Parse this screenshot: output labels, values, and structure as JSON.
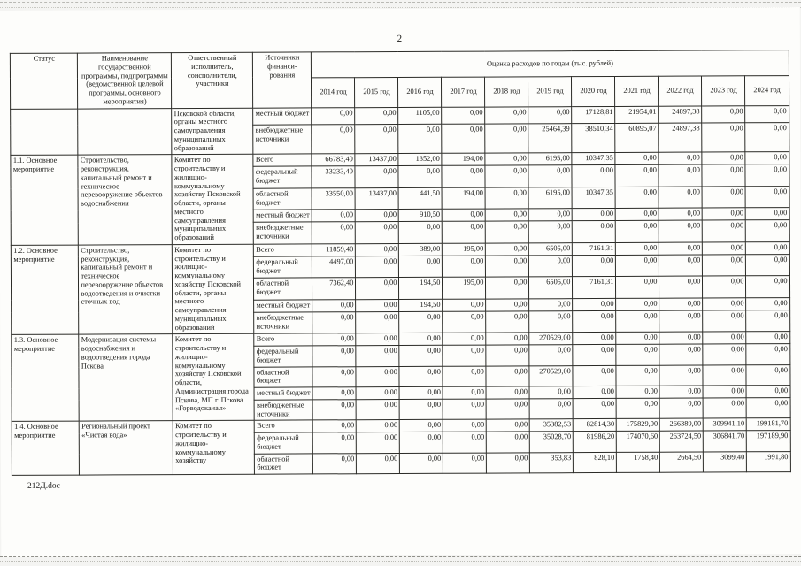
{
  "page": {
    "number": "2",
    "footer_note": "212Д.doc"
  },
  "table": {
    "header": {
      "status": "Статус",
      "program_name": "Наименование государственной программы, подпрограммы (ведомственной целевой программы, основного мероприятия)",
      "executor": "Ответственный исполнитель, соисполнители, участники",
      "funding_source": "Источники финанси-рования",
      "costs_title": "Оценка расходов по годам (тыс. рублей)",
      "years": [
        "2014 год",
        "2015 год",
        "2016 год",
        "2017 год",
        "2018 год",
        "2019 год",
        "2020 год",
        "2021 год",
        "2022 год",
        "2023 год",
        "2024 год"
      ]
    },
    "blocks": [
      {
        "status": "",
        "name": "",
        "executor": "Псковской области, органы местного самоуправления муниципальных образований",
        "sources": [
          {
            "label": "местный бюджет",
            "values": [
              "0,00",
              "0,00",
              "1105,00",
              "0,00",
              "0,00",
              "0,00",
              "17128,81",
              "21954,01",
              "24897,38",
              "0,00",
              "0,00"
            ]
          },
          {
            "label": "внебюджетные источники",
            "values": [
              "0,00",
              "0,00",
              "0,00",
              "0,00",
              "0,00",
              "25464,39",
              "38510,34",
              "60895,07",
              "24897,38",
              "0,00",
              "0,00"
            ]
          }
        ]
      },
      {
        "status": "1.1. Основное мероприятие",
        "name": "Строительство, реконструкция, капитальный ремонт и техническое перевооружение объектов водоснабжения",
        "executor": "Комитет по строительству и жилищно-коммунальному хозяйству Псковской области, органы местного самоуправления муниципальных образований",
        "sources": [
          {
            "label": "Всего",
            "values": [
              "66783,40",
              "13437,00",
              "1352,00",
              "194,00",
              "0,00",
              "6195,00",
              "10347,35",
              "0,00",
              "0,00",
              "0,00",
              "0,00"
            ]
          },
          {
            "label": "федеральный бюджет",
            "values": [
              "33233,40",
              "0,00",
              "0,00",
              "0,00",
              "0,00",
              "0,00",
              "0,00",
              "0,00",
              "0,00",
              "0,00",
              "0,00"
            ]
          },
          {
            "label": "областной бюджет",
            "values": [
              "33550,00",
              "13437,00",
              "441,50",
              "194,00",
              "0,00",
              "6195,00",
              "10347,35",
              "0,00",
              "0,00",
              "0,00",
              "0,00"
            ]
          },
          {
            "label": "местный бюджет",
            "values": [
              "0,00",
              "0,00",
              "910,50",
              "0,00",
              "0,00",
              "0,00",
              "0,00",
              "0,00",
              "0,00",
              "0,00",
              "0,00"
            ]
          },
          {
            "label": "внебюджетные источники",
            "values": [
              "0,00",
              "0,00",
              "0,00",
              "0,00",
              "0,00",
              "0,00",
              "0,00",
              "0,00",
              "0,00",
              "0,00",
              "0,00"
            ]
          }
        ]
      },
      {
        "status": "1.2. Основное мероприятие",
        "name": "Строительство, реконструкция, капитальный ремонт и техническое перевооружение объектов водоотведения и очистки сточных вод",
        "executor": "Комитет по строительству и жилищно-коммунальному хозяйству Псковской области, органы местного самоуправления муниципальных образований",
        "sources": [
          {
            "label": "Всего",
            "values": [
              "11859,40",
              "0,00",
              "389,00",
              "195,00",
              "0,00",
              "6505,00",
              "7161,31",
              "0,00",
              "0,00",
              "0,00",
              "0,00"
            ]
          },
          {
            "label": "федеральный бюджет",
            "values": [
              "4497,00",
              "0,00",
              "0,00",
              "0,00",
              "0,00",
              "0,00",
              "0,00",
              "0,00",
              "0,00",
              "0,00",
              "0,00"
            ]
          },
          {
            "label": "областной бюджет",
            "values": [
              "7362,40",
              "0,00",
              "194,50",
              "195,00",
              "0,00",
              "6505,00",
              "7161,31",
              "0,00",
              "0,00",
              "0,00",
              "0,00"
            ]
          },
          {
            "label": "местный бюджет",
            "values": [
              "0,00",
              "0,00",
              "194,50",
              "0,00",
              "0,00",
              "0,00",
              "0,00",
              "0,00",
              "0,00",
              "0,00",
              "0,00"
            ]
          },
          {
            "label": "внебюджетные источники",
            "values": [
              "0,00",
              "0,00",
              "0,00",
              "0,00",
              "0,00",
              "0,00",
              "0,00",
              "0,00",
              "0,00",
              "0,00",
              "0,00"
            ]
          }
        ]
      },
      {
        "status": "1.3. Основное мероприятие",
        "name": "Модернизация системы водоснабжения и водоотведения города Пскова",
        "executor": "Комитет по строительству и жилищно-коммунальному хозяйству Псковской области, Администрация города Пскова, МП г. Пскова «Горводоканал»",
        "sources": [
          {
            "label": "Всего",
            "values": [
              "0,00",
              "0,00",
              "0,00",
              "0,00",
              "0,00",
              "270529,00",
              "0,00",
              "0,00",
              "0,00",
              "0,00",
              "0,00"
            ]
          },
          {
            "label": "федеральный бюджет",
            "values": [
              "0,00",
              "0,00",
              "0,00",
              "0,00",
              "0,00",
              "0,00",
              "0,00",
              "0,00",
              "0,00",
              "0,00",
              "0,00"
            ]
          },
          {
            "label": "областной бюджет",
            "values": [
              "0,00",
              "0,00",
              "0,00",
              "0,00",
              "0,00",
              "270529,00",
              "0,00",
              "0,00",
              "0,00",
              "0,00",
              "0,00"
            ]
          },
          {
            "label": "местный бюджет",
            "values": [
              "0,00",
              "0,00",
              "0,00",
              "0,00",
              "0,00",
              "0,00",
              "0,00",
              "0,00",
              "0,00",
              "0,00",
              "0,00"
            ]
          },
          {
            "label": "внебюджетные источники",
            "values": [
              "0,00",
              "0,00",
              "0,00",
              "0,00",
              "0,00",
              "0,00",
              "0,00",
              "0,00",
              "0,00",
              "0,00",
              "0,00"
            ]
          }
        ]
      },
      {
        "status": "1.4. Основное мероприятие",
        "name": "Региональный проект «Чистая вода»",
        "executor": "Комитет по строительству и жилищно-коммунальному хозяйству",
        "sources": [
          {
            "label": "Всего",
            "values": [
              "0,00",
              "0,00",
              "0,00",
              "0,00",
              "0,00",
              "35382,53",
              "82814,30",
              "175829,00",
              "266389,00",
              "309941,10",
              "199181,70"
            ]
          },
          {
            "label": "федеральный бюджет",
            "values": [
              "0,00",
              "0,00",
              "0,00",
              "0,00",
              "0,00",
              "35028,70",
              "81986,20",
              "174070,60",
              "263724,50",
              "306841,70",
              "197189,90"
            ]
          },
          {
            "label": "областной бюджет",
            "values": [
              "0,00",
              "0,00",
              "0,00",
              "0,00",
              "0,00",
              "353,83",
              "828,10",
              "1758,40",
              "2664,50",
              "3099,40",
              "1991,80"
            ]
          }
        ]
      }
    ]
  }
}
